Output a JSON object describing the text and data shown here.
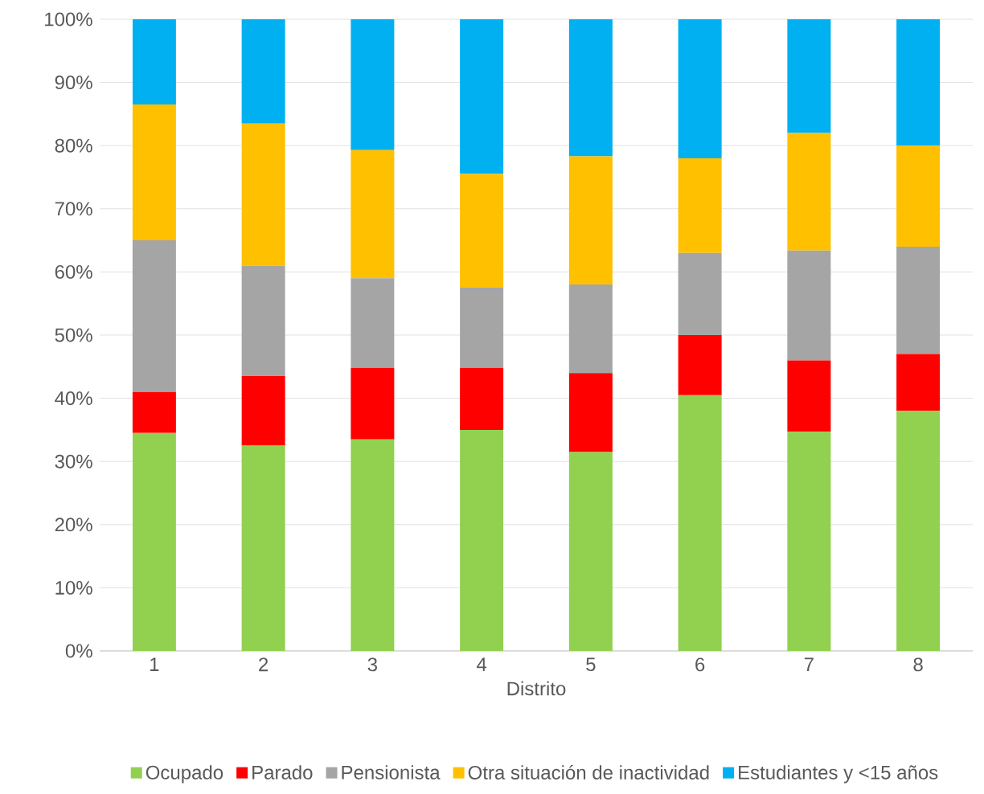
{
  "chart_data": {
    "type": "bar",
    "stacked": true,
    "xlabel": "Distrito",
    "categories": [
      "1",
      "2",
      "3",
      "4",
      "5",
      "6",
      "7",
      "8"
    ],
    "series": [
      {
        "name": "Ocupado",
        "color": "#92d050",
        "values": [
          34.5,
          32.5,
          33.5,
          35,
          31.5,
          40.5,
          34.7,
          38
        ]
      },
      {
        "name": "Parado",
        "color": "#ff0000",
        "values": [
          6.5,
          11,
          11.3,
          9.8,
          12.5,
          9.5,
          11.3,
          9
        ]
      },
      {
        "name": "Pensionista",
        "color": "#a5a5a5",
        "values": [
          24,
          17.5,
          14.2,
          12.7,
          14,
          13,
          17.4,
          17
        ]
      },
      {
        "name": "Otra situación de inactividad",
        "color": "#ffc000",
        "values": [
          21.5,
          22.5,
          20.3,
          18,
          20.3,
          15,
          18.6,
          16
        ]
      },
      {
        "name": "Estudiantes y <15 años",
        "color": "#00b0f0",
        "values": [
          13.5,
          16.5,
          20.7,
          24.5,
          21.7,
          22,
          18,
          20
        ]
      }
    ],
    "ylim": [
      0,
      100
    ],
    "yticks": [
      {
        "value": 0,
        "label": "0%"
      },
      {
        "value": 10,
        "label": "10%"
      },
      {
        "value": 20,
        "label": "20%"
      },
      {
        "value": 30,
        "label": "30%"
      },
      {
        "value": 40,
        "label": "40%"
      },
      {
        "value": 50,
        "label": "50%"
      },
      {
        "value": 60,
        "label": "60%"
      },
      {
        "value": 70,
        "label": "70%"
      },
      {
        "value": 80,
        "label": "80%"
      },
      {
        "value": 90,
        "label": "90%"
      },
      {
        "value": 100,
        "label": "100%"
      }
    ],
    "grid": "y",
    "legend": "bottom"
  }
}
